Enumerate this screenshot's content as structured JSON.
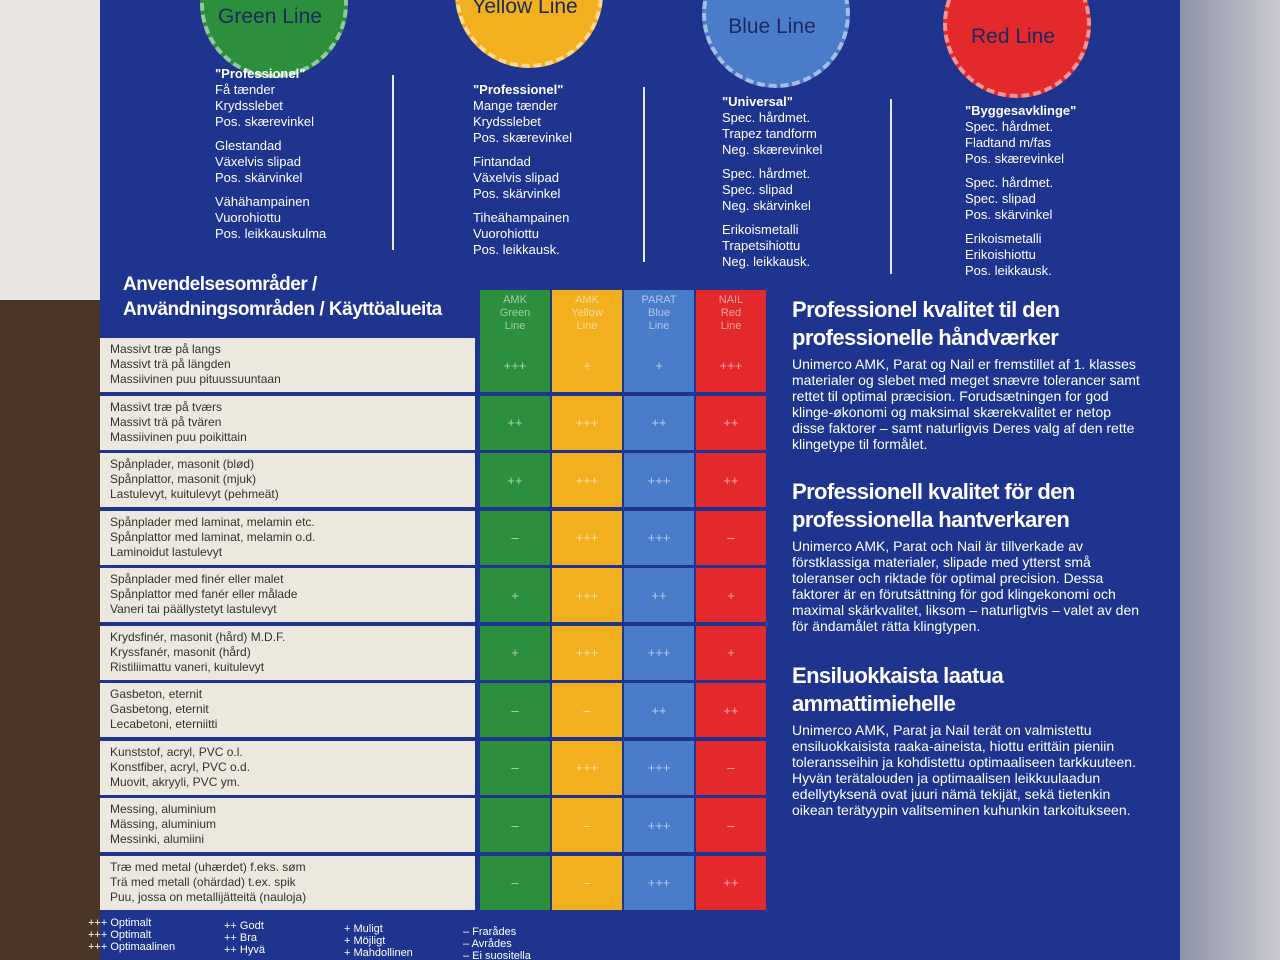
{
  "blades": [
    {
      "name": "Green Line",
      "color": "#2b8f3c",
      "groups": [
        [
          "\"Professionel\"",
          "Få tænder",
          "Krydsslebet",
          "Pos. skærevinkel"
        ],
        [
          "Glestandad",
          "Växelvis slipad",
          "Pos. skärvinkel"
        ],
        [
          "Vähähampainen",
          "Vuorohiottu",
          "Pos. leikkauskulma"
        ]
      ]
    },
    {
      "name": "Yellow Line",
      "color": "#f2b01e",
      "groups": [
        [
          "\"Professionel\"",
          "Mange tænder",
          "Krydsslebet",
          "Pos. skærevinkel"
        ],
        [
          "Fintandad",
          "Växelvis slipad",
          "Pos. skärvinkel"
        ],
        [
          "Tiheähampainen",
          "Vuorohiottu",
          "Pos. leikkausk."
        ]
      ]
    },
    {
      "name": "Blue Line",
      "color": "#4b7cc9",
      "groups": [
        [
          "\"Universal\"",
          "Spec. hårdmet.",
          "Trapez tandform",
          "Neg. skærevinkel"
        ],
        [
          "Spec. hårdmet.",
          "Spec. slipad",
          "Neg. skärvinkel"
        ],
        [
          "Erikoismetalli",
          "Trapetsihiottu",
          "Neg. leikkausk."
        ]
      ]
    },
    {
      "name": "Red Line",
      "color": "#e3292b",
      "groups": [
        [
          "\"Byggesavklinge\"",
          "Spec. hårdmet.",
          "Fladtand m/fas",
          "Pos. skærevinkel"
        ],
        [
          "Spec. hårdmet.",
          "Spec. slipad",
          "Pos. skärvinkel"
        ],
        [
          "Erikoismetalli",
          "Erikoishiottu",
          "Pos. leikkausk."
        ]
      ]
    }
  ],
  "table": {
    "title": [
      "Anvendelsesområder /",
      "Användningsområden / Käyttöalueita"
    ],
    "columns": [
      [
        "AMK",
        "Green",
        "Line"
      ],
      [
        "AMK",
        "Yellow",
        "Line"
      ],
      [
        "PARAT",
        "Blue",
        "Line"
      ],
      [
        "NAIL",
        "Red",
        "Line"
      ]
    ],
    "rows": [
      {
        "label": [
          "Massivt træ på langs",
          "Massivt trä på längden",
          "Massiivinen puu pituussuuntaan"
        ],
        "ratings": [
          "+++",
          "+",
          "+",
          "+++"
        ]
      },
      {
        "label": [
          "Massivt træ på tværs",
          "Massivt trä på tvären",
          "Massiivinen puu poikittain"
        ],
        "ratings": [
          "++",
          "+++",
          "++",
          "++"
        ]
      },
      {
        "label": [
          "Spånplader, masonit (blød)",
          "Spånplattor, masonit (mjuk)",
          "Lastulevyt, kuitulevyt (pehmeät)"
        ],
        "ratings": [
          "++",
          "+++",
          "+++",
          "++"
        ]
      },
      {
        "label": [
          "Spånplader med laminat, melamin etc.",
          "Spånplattor med laminat, melamin o.d.",
          "Laminoidut lastulevyt"
        ],
        "ratings": [
          "–",
          "+++",
          "+++",
          "–"
        ]
      },
      {
        "label": [
          "Spånplader med finér eller malet",
          "Spånplattor med fanér eller målade",
          "Vaneri tai päällystetyt lastulevyt"
        ],
        "ratings": [
          "+",
          "+++",
          "++",
          "+"
        ]
      },
      {
        "label": [
          "Krydsfinér, masonit (hård) M.D.F.",
          "Kryssfanér, masonit (hård)",
          "Ristiliimattu vaneri, kuitulevyt"
        ],
        "ratings": [
          "+",
          "+++",
          "+++",
          "+"
        ]
      },
      {
        "label": [
          "Gasbeton, eternit",
          "Gasbetong, eternit",
          "Lecabetoni, eterniitti"
        ],
        "ratings": [
          "–",
          "–",
          "++",
          "++"
        ]
      },
      {
        "label": [
          "Kunststof, acryl, PVC o.l.",
          "Konstfiber, acryl, PVC o.d.",
          "Muovit, akryyli, PVC ym."
        ],
        "ratings": [
          "–",
          "+++",
          "+++",
          "–"
        ]
      },
      {
        "label": [
          "Messing, aluminium",
          "Mässing, aluminium",
          "Messinki, alumiini"
        ],
        "ratings": [
          "–",
          "–",
          "+++",
          "–"
        ]
      },
      {
        "label": [
          "Træ med metal (uhærdet) f.eks. søm",
          "Trä med metall (ohärdad) t.ex. spik",
          "Puu, jossa on metallijätteitä (nauloja)"
        ],
        "ratings": [
          "–",
          "–",
          "+++",
          "++"
        ]
      }
    ]
  },
  "legend": [
    [
      "+++ Optimalt",
      "+++ Optimalt",
      "+++ Optimaalinen"
    ],
    [
      "++ Godt",
      "++ Bra",
      "++ Hyvä"
    ],
    [
      "+ Muligt",
      "+ Möjligt",
      "+ Mahdollinen"
    ],
    [
      "– Frarådes",
      "– Avrådes",
      "– Ei suositella"
    ]
  ],
  "sections": [
    {
      "heading": "Professionel kvalitet til den professionelle håndværker",
      "body": "Unimerco AMK, Parat og Nail er fremstillet af 1. klasses materialer og slebet med meget snævre tolerancer samt rettet til optimal præcision. Forudsætningen for god klinge-økonomi og maksimal skærekvalitet er netop disse faktorer – samt naturligvis Deres valg af den rette klingetype til formålet."
    },
    {
      "heading": "Professionell kvalitet för den professionella hantverkaren",
      "body": "Unimerco AMK, Parat och Nail är tillverkade av förstklassiga materialer, slipade med ytterst små toleranser och riktade för optimal precision. Dessa faktorer är en förutsättning för god klingekonomi och maximal skärkvalitet, liksom – naturligtvis – valet av den för ändamålet rätta klingtypen."
    },
    {
      "heading": "Ensiluokkaista laatua ammattimiehelle",
      "body": "Unimerco AMK, Parat ja Nail terät on valmistettu ensiluokkaisista raaka-aineista, hiottu erittäin pieniin toleransseihin ja kohdistettu optimaaliseen tarkkuuteen. Hyvän terätalouden ja optimaalisen leikkuulaadun edellytyksenä ovat juuri nämä tekijät, sekä tietenkin oikean terätyypin valitseminen kuhunkin tarkoitukseen."
    }
  ]
}
